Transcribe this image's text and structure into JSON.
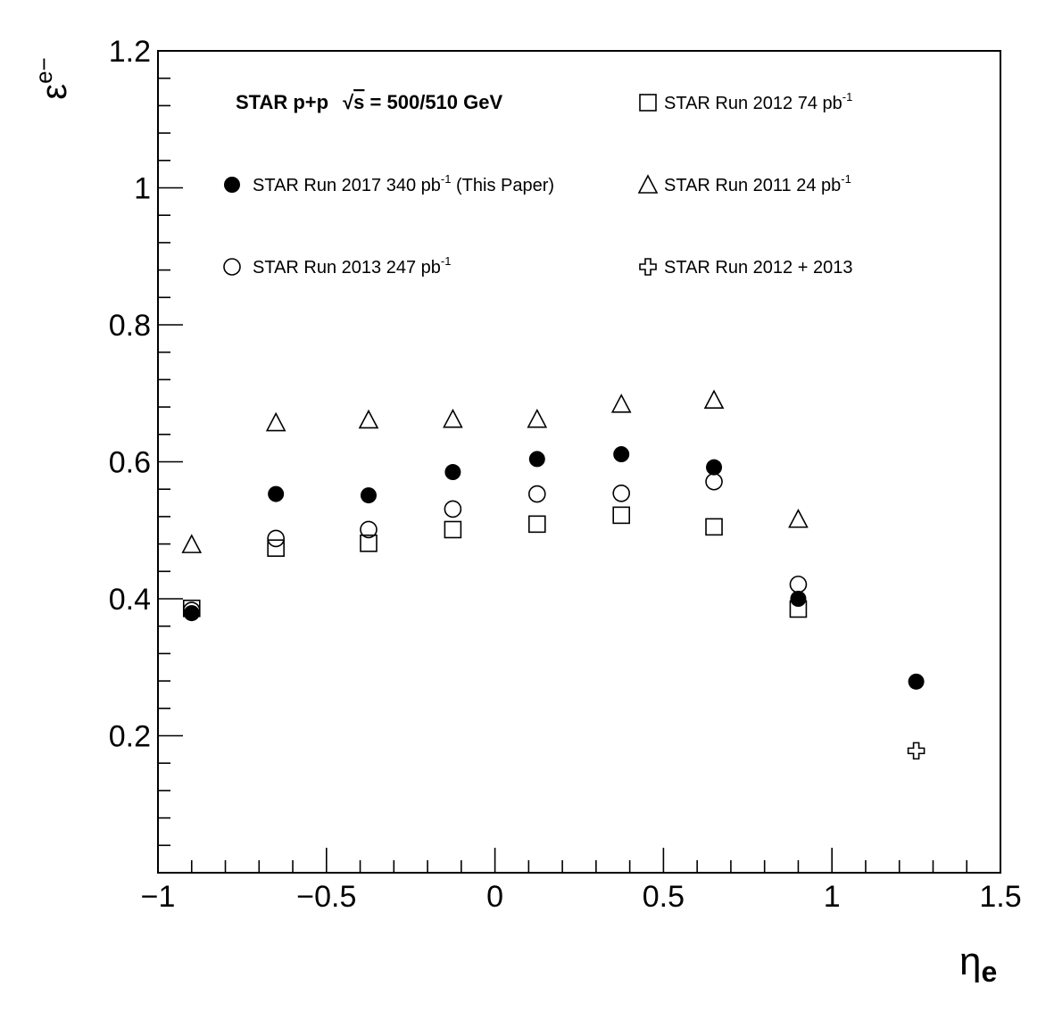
{
  "chart_data": {
    "type": "scatter",
    "header": {
      "prefix": "STAR p+p",
      "sqrt_symbol": "√",
      "s_symbol": "s",
      "energy": " = 500/510 GeV"
    },
    "xlabel": {
      "main": "η",
      "sub": "e"
    },
    "ylabel": {
      "main": "ε",
      "sup": "e−"
    },
    "xlim": [
      -1,
      1.5
    ],
    "ylim": [
      0,
      1.2
    ],
    "x_ticks": [
      -1,
      -0.5,
      0,
      0.5,
      1,
      1.5
    ],
    "x_tick_labels": [
      "−1",
      "−0.5",
      "0",
      "0.5",
      "1",
      "1.5"
    ],
    "y_ticks": [
      0.2,
      0.4,
      0.6,
      0.8,
      1,
      1.2
    ],
    "y_tick_labels": [
      "0.2",
      "0.4",
      "0.6",
      "0.8",
      "1",
      "1.2"
    ],
    "grid": false,
    "series": [
      {
        "key": "run2017",
        "name": "STAR Run 2017 340 pb",
        "sup": "-1",
        "suffix": " (This Paper)",
        "marker": "filled-circle",
        "x": [
          -0.9,
          -0.65,
          -0.375,
          -0.125,
          0.125,
          0.375,
          0.65,
          0.9,
          1.25
        ],
        "y": [
          0.379,
          0.553,
          0.551,
          0.585,
          0.604,
          0.611,
          0.592,
          0.4,
          0.279
        ]
      },
      {
        "key": "run2013",
        "name": "STAR Run 2013 247 pb",
        "sup": "-1",
        "suffix": "",
        "marker": "open-circle",
        "x": [
          -0.9,
          -0.65,
          -0.375,
          -0.125,
          0.125,
          0.375,
          0.65,
          0.9
        ],
        "y": [
          0.383,
          0.488,
          0.501,
          0.531,
          0.553,
          0.554,
          0.571,
          0.421
        ]
      },
      {
        "key": "run2012",
        "name": "STAR Run 2012 74 pb",
        "sup": "-1",
        "suffix": "",
        "marker": "open-square",
        "x": [
          -0.9,
          -0.65,
          -0.375,
          -0.125,
          0.125,
          0.375,
          0.65,
          0.9
        ],
        "y": [
          0.386,
          0.474,
          0.481,
          0.501,
          0.509,
          0.522,
          0.505,
          0.385
        ]
      },
      {
        "key": "run2011",
        "name": "STAR Run 2011 24 pb",
        "sup": "-1",
        "suffix": "",
        "marker": "open-triangle",
        "x": [
          -0.9,
          -0.65,
          -0.375,
          -0.125,
          0.125,
          0.375,
          0.65,
          0.9
        ],
        "y": [
          0.478,
          0.656,
          0.66,
          0.661,
          0.661,
          0.683,
          0.689,
          0.515
        ]
      },
      {
        "key": "run2012_2013",
        "name": "STAR Run 2012 + 2013",
        "sup": "",
        "suffix": "",
        "marker": "open-cross",
        "x": [
          1.25
        ],
        "y": [
          0.178
        ]
      }
    ]
  }
}
